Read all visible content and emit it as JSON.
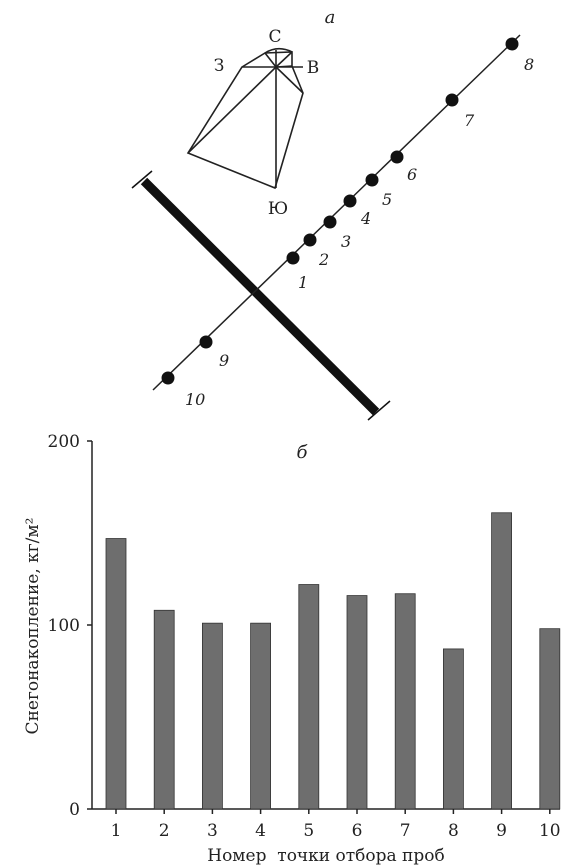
{
  "panel_a": {
    "label": "а",
    "compass": {
      "north": "С",
      "south": "Ю",
      "west": "З",
      "east": "В"
    },
    "points": [
      {
        "label": "1"
      },
      {
        "label": "2"
      },
      {
        "label": "3"
      },
      {
        "label": "4"
      },
      {
        "label": "5"
      },
      {
        "label": "6"
      },
      {
        "label": "7"
      },
      {
        "label": "8"
      },
      {
        "label": "9"
      },
      {
        "label": "10"
      }
    ]
  },
  "chart_data": {
    "type": "bar",
    "panel_label": "б",
    "categories": [
      "1",
      "2",
      "3",
      "4",
      "5",
      "6",
      "7",
      "8",
      "9",
      "10"
    ],
    "values": [
      147,
      108,
      101,
      101,
      122,
      116,
      117,
      87,
      161,
      98
    ],
    "xlabel": "Номер  точки отбора проб",
    "ylabel": "Снегонакопление, кг/м²",
    "ylim": [
      0,
      200
    ],
    "yticks": [
      "0",
      "100",
      "200"
    ],
    "bar_color": "#6e6e6e",
    "grid": false
  }
}
